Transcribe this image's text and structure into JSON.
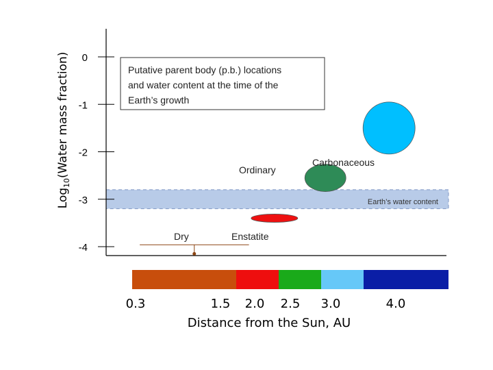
{
  "chart_data": {
    "type": "scatter",
    "title": "Putative parent body (p.b.) locations and water content at the time of the Earth’s growth",
    "title_lines": [
      "Putative parent body (p.b.) locations",
      "and water content at the time of the",
      "Earth’s growth"
    ],
    "ylabel_prefix": "Log",
    "ylabel_sub": "10",
    "ylabel_suffix": "(Water mass fraction)",
    "xlabel": "Distance from the Sun, AU",
    "y_ticks": [
      0,
      -1,
      -2,
      -3,
      -4
    ],
    "y_tick_labels": [
      "0",
      "-1",
      "-2",
      "-3",
      "-4"
    ],
    "ylim": [
      -4.2,
      0.55
    ],
    "x_tick_labels": [
      {
        "value": 0.3,
        "label": "0.3"
      },
      {
        "value": 1.5,
        "label": "1.5"
      },
      {
        "value": 2.0,
        "label": "2.0"
      },
      {
        "value": 2.5,
        "label": "2.5"
      },
      {
        "value": 3.0,
        "label": "3.0"
      },
      {
        "value": 4.0,
        "label": "4.0"
      }
    ],
    "bodies": [
      {
        "name": "Dry",
        "x": 1.0,
        "y": -4.15,
        "x_range": [
          0.35,
          1.65
        ],
        "shape": "line-marker",
        "color": "#8b4513"
      },
      {
        "name": "Enstatite",
        "x": 1.95,
        "y": -3.4,
        "shape": "ellipse",
        "color": "#ee1111"
      },
      {
        "name": "Ordinary",
        "x": 2.55,
        "y": -2.55,
        "shape": "ellipse",
        "color": "#2e8b57"
      },
      {
        "name": "Carbonaceous",
        "x": 3.3,
        "y": -1.5,
        "shape": "ellipse",
        "color": "#00bfff"
      }
    ],
    "band": {
      "label": "Earth’s water content",
      "y_range": [
        -2.8,
        -3.2
      ],
      "color": "#b8cbe8"
    },
    "color_scale": [
      {
        "from": 0.3,
        "to": 1.5,
        "color": "#c84e0c"
      },
      {
        "from": 1.5,
        "to": 2.0,
        "color": "#ee0e0e"
      },
      {
        "from": 2.0,
        "to": 2.5,
        "color": "#1aaa1a"
      },
      {
        "from": 2.5,
        "to": 3.0,
        "color": "#66c8f8"
      },
      {
        "from": 3.0,
        "to": 4.0,
        "color": "#0a1ea6"
      }
    ],
    "grid": false
  }
}
